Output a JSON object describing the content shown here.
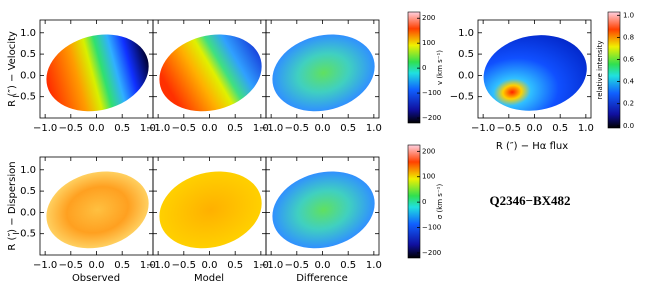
{
  "figure": {
    "title": "Q2346−BX482",
    "row_labels": [
      "R (″) − Velocity",
      "R (″) − Dispersion"
    ],
    "column_labels": [
      "Observed",
      "Model",
      "Difference"
    ],
    "flux_label": "R (″) − Hα flux",
    "axes": {
      "xlim": [
        -1.1,
        1.1
      ],
      "ylim": [
        -1.0,
        1.3
      ],
      "xticks": [
        {
          "value": -1.0,
          "label": "−1.0"
        },
        {
          "value": -0.5,
          "label": "−0.5"
        },
        {
          "value": 0.0,
          "label": "0.0"
        },
        {
          "value": 0.5,
          "label": "0.5"
        },
        {
          "value": 1.0,
          "label": "1.0"
        }
      ],
      "yticks": [
        {
          "value": 1.0,
          "label": "1.0"
        },
        {
          "value": 0.5,
          "label": "0.5"
        },
        {
          "value": 0.0,
          "label": "0.0"
        },
        {
          "value": -0.5,
          "label": "−0.5"
        }
      ]
    },
    "colorbars": [
      {
        "label": "v (km s⁻¹)",
        "lim": [
          -220,
          225
        ],
        "ticks": [
          200,
          100,
          0,
          {
            "value": -100,
            "label": "−100"
          },
          {
            "value": -200,
            "label": "−200"
          }
        ]
      },
      {
        "label": "σ (km s⁻¹)",
        "lim": [
          -220,
          225
        ],
        "ticks": [
          200,
          100,
          0,
          {
            "value": -100,
            "label": "−100"
          },
          {
            "value": -200,
            "label": "−200"
          }
        ]
      },
      {
        "label": "relative intensity",
        "lim": [
          -0.02,
          1.03
        ],
        "ticks": [
          {
            "value": 1.0,
            "label": "1.0"
          },
          {
            "value": 0.8,
            "label": "0.8"
          },
          {
            "value": 0.6,
            "label": "0.6"
          },
          {
            "value": 0.4,
            "label": "0.4"
          },
          {
            "value": 0.2,
            "label": "0.2"
          },
          {
            "value": 0.0,
            "label": "0.0"
          }
        ]
      }
    ]
  }
}
